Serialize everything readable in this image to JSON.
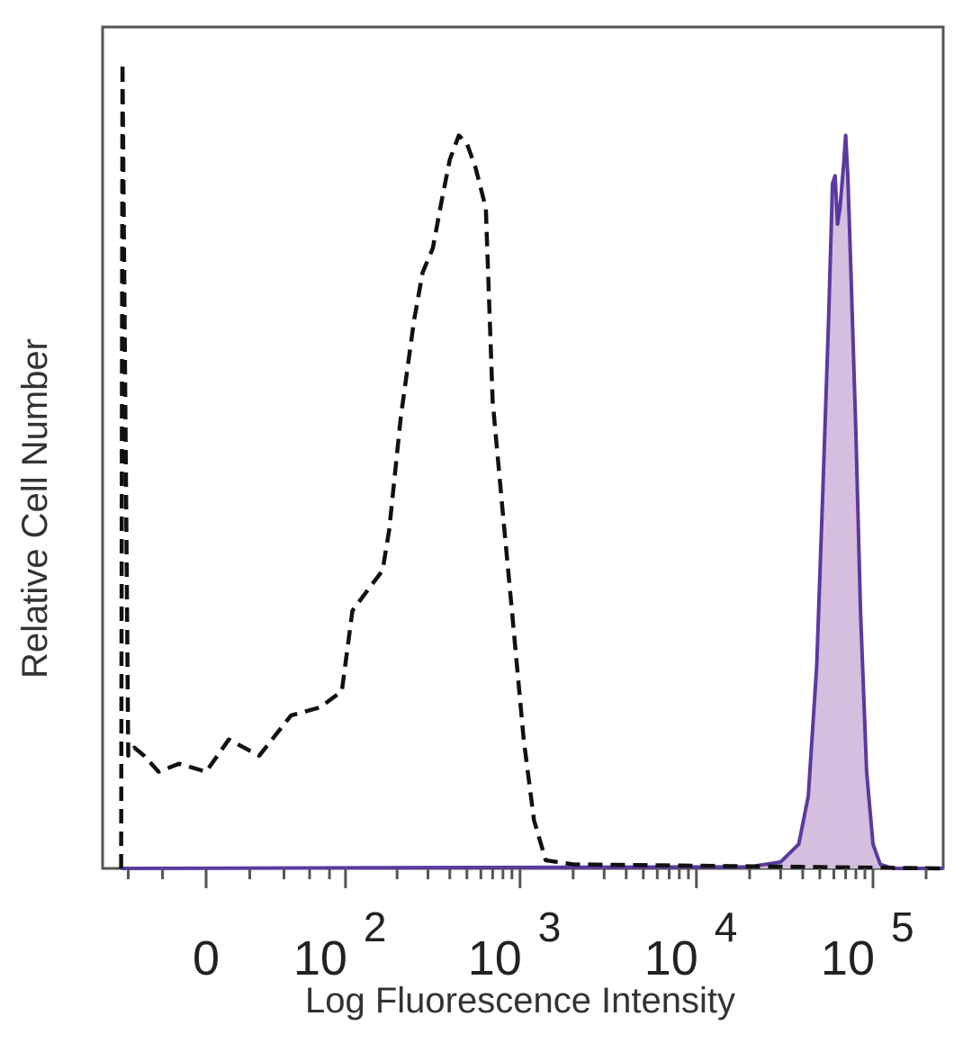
{
  "chart_data": {
    "type": "area",
    "xlabel": "Log Fluorescence Intensity",
    "ylabel": "Relative Cell Number",
    "x_scale": "biexponential",
    "xlim": [
      -60,
      250000
    ],
    "ylim": [
      0,
      100
    ],
    "grid": false,
    "legend": "none",
    "x_ticks": [
      {
        "value": 0,
        "base": "0",
        "exp": ""
      },
      {
        "value": 100,
        "base": "10",
        "exp": "2"
      },
      {
        "value": 1000,
        "base": "10",
        "exp": "3"
      },
      {
        "value": 10000,
        "base": "10",
        "exp": "4"
      },
      {
        "value": 100000,
        "base": "10",
        "exp": "5"
      }
    ],
    "series": [
      {
        "style": "dashed",
        "color": "#111111",
        "fill": "none",
        "points": [
          [
            -45,
            0
          ],
          [
            -44,
            100
          ],
          [
            -40,
            14
          ],
          [
            -36,
            15
          ],
          [
            -30,
            14
          ],
          [
            -22,
            12
          ],
          [
            -12,
            13
          ],
          [
            0,
            12
          ],
          [
            10,
            16
          ],
          [
            25,
            14
          ],
          [
            45,
            19
          ],
          [
            70,
            20
          ],
          [
            95,
            22
          ],
          [
            110,
            32
          ],
          [
            140,
            35
          ],
          [
            165,
            37
          ],
          [
            180,
            42
          ],
          [
            210,
            56
          ],
          [
            250,
            68
          ],
          [
            280,
            74
          ],
          [
            320,
            77
          ],
          [
            360,
            83
          ],
          [
            400,
            88
          ],
          [
            450,
            91
          ],
          [
            500,
            90
          ],
          [
            560,
            87
          ],
          [
            640,
            82
          ],
          [
            700,
            58
          ],
          [
            800,
            44
          ],
          [
            900,
            32
          ],
          [
            1050,
            16
          ],
          [
            1200,
            6
          ],
          [
            1400,
            1
          ],
          [
            2000,
            0.5
          ],
          [
            250000,
            0
          ]
        ]
      },
      {
        "style": "solid",
        "color": "#5b3a9f",
        "fill": "#d6bedf",
        "points": [
          [
            -45,
            0
          ],
          [
            20000,
            0.2
          ],
          [
            30000,
            0.8
          ],
          [
            38000,
            3
          ],
          [
            43000,
            9
          ],
          [
            48000,
            25
          ],
          [
            52000,
            47
          ],
          [
            56000,
            68
          ],
          [
            59000,
            85
          ],
          [
            61000,
            86
          ],
          [
            63000,
            80
          ],
          [
            65000,
            82
          ],
          [
            68000,
            87
          ],
          [
            70000,
            91
          ],
          [
            72000,
            86
          ],
          [
            75000,
            74
          ],
          [
            80000,
            54
          ],
          [
            85000,
            32
          ],
          [
            92000,
            12
          ],
          [
            100000,
            3
          ],
          [
            110000,
            0.5
          ],
          [
            130000,
            0
          ],
          [
            250000,
            0
          ]
        ]
      }
    ]
  }
}
